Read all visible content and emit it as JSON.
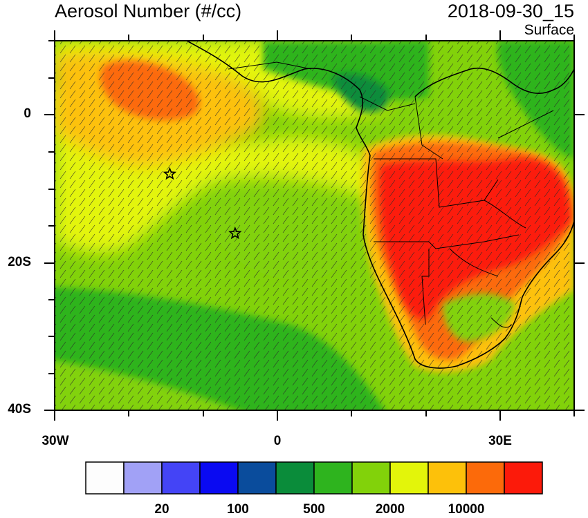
{
  "title": "Aerosol Number (#/cc)",
  "datetime": "2018-09-30_15",
  "level": "Surface",
  "lat_ticks": [
    "0",
    "20S",
    "40S"
  ],
  "lon_ticks": [
    "30W",
    "0",
    "30E"
  ],
  "colorbar": {
    "colors": [
      "#fdfdfd",
      "#a1a1f6",
      "#4444f6",
      "#0a0af2",
      "#0a4c9c",
      "#0a8c3a",
      "#2eb41e",
      "#82d20a",
      "#e3f50a",
      "#fdc10a",
      "#fc6a0a",
      "#fc1a0a"
    ],
    "labels": [
      "20",
      "100",
      "500",
      "2000",
      "10000"
    ]
  },
  "markers": [
    {
      "name": "station-star-north",
      "lon": -14.5,
      "lat": -8
    },
    {
      "name": "station-star-south",
      "lon": -5.7,
      "lat": -16
    }
  ]
}
